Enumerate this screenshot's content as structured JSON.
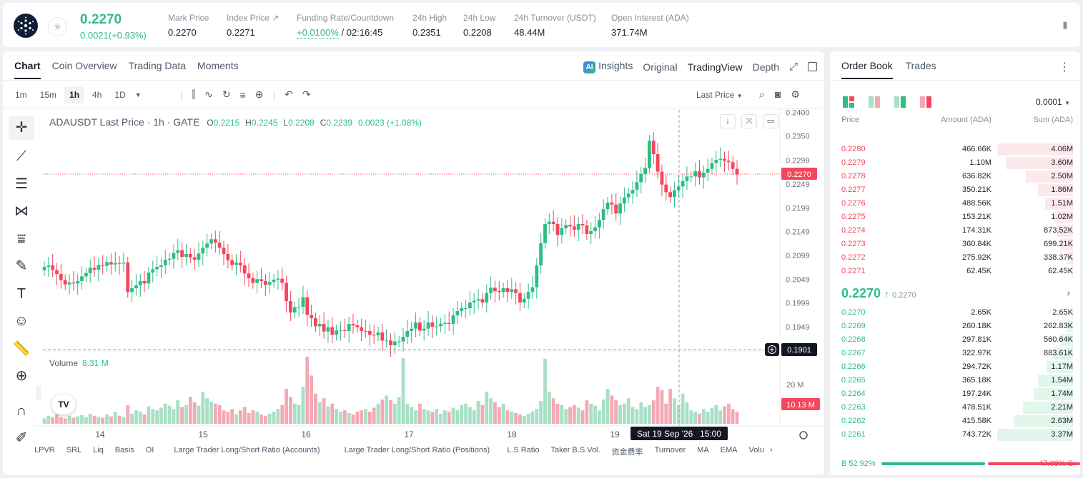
{
  "ticker": {
    "last_price": "0.2270",
    "change": "0.0021(+0.93%)",
    "stats": [
      {
        "label": "Mark Price",
        "value": "0.2270"
      },
      {
        "label": "Index Price ↗",
        "value": "0.2271"
      },
      {
        "label": "Funding Rate/Countdown",
        "value_rate": "+0.0100%",
        "value_countdown": " / 02:16:45"
      },
      {
        "label": "24h High",
        "value": "0.2351"
      },
      {
        "label": "24h Low",
        "value": "0.2208"
      },
      {
        "label": "24h Turnover (USDT)",
        "value": "48.44M"
      },
      {
        "label": "Open Interest (ADA)",
        "value": "371.74M"
      }
    ]
  },
  "chart_panel": {
    "tabs": [
      "Chart",
      "Coin Overview",
      "Trading Data",
      "Moments"
    ],
    "views": {
      "ai_badge": "AI",
      "insights": "Insights",
      "original": "Original",
      "tradingview": "TradingView",
      "depth": "Depth"
    },
    "timeframes": [
      "1m",
      "15m",
      "1h",
      "4h",
      "1D"
    ],
    "price_type": "Last Price",
    "legend": {
      "symbol": "ADAUSDT Last Price · 1h · GATE",
      "o_key": "O",
      "o": "0.2215",
      "h_key": "H",
      "h": "0.2245",
      "l_key": "L",
      "l": "0.2208",
      "c_key": "C",
      "c": "0.2239",
      "chg": "0.0023 (+1.08%)"
    },
    "volume_label": "Volume",
    "volume_value": "8.31 M",
    "tv_logo": "TV",
    "crosshair_date": "Sat 19 Sep '26",
    "crosshair_time": "15:00",
    "bottom_indicators": [
      "LPVR",
      "SRL",
      "Liq",
      "Basis",
      "OI",
      "Large Trader Long/Short Ratio (Accounts)",
      "Large Trader Long/Short Ratio (Positions)",
      "L.S Ratio",
      "Taker B.S Vol.",
      "资金费率",
      "Turnover",
      "MA",
      "EMA",
      "Volu"
    ]
  },
  "chart_data": {
    "type": "candlestick",
    "symbol": "ADAUSDT",
    "interval": "1h",
    "x_ticks": [
      "14",
      "15",
      "16",
      "17",
      "18",
      "19"
    ],
    "y_ticks": [
      "0.2400",
      "0.2350",
      "0.2299",
      "0.2249",
      "0.2199",
      "0.2149",
      "0.2099",
      "0.2049",
      "0.1999",
      "0.1949"
    ],
    "ylim": [
      0.1898,
      0.2405
    ],
    "current_price": "0.2270",
    "crosshair_price": "0.1901",
    "volume_axis_tick": "20 M",
    "current_volume": "10.13 M",
    "closes": [
      0.2075,
      0.2078,
      0.2068,
      0.206,
      0.2047,
      0.2038,
      0.2042,
      0.204,
      0.2045,
      0.2055,
      0.2062,
      0.2073,
      0.2069,
      0.2079,
      0.2077,
      0.2085,
      0.208,
      0.2083,
      0.2082,
      0.2084,
      0.2022,
      0.203,
      0.2036,
      0.2045,
      0.204,
      0.2063,
      0.207,
      0.2075,
      0.2078,
      0.209,
      0.2092,
      0.2104,
      0.211,
      0.2096,
      0.2102,
      0.2095,
      0.209,
      0.2103,
      0.2115,
      0.2124,
      0.2133,
      0.2126,
      0.2115,
      0.2102,
      0.2089,
      0.2079,
      0.2084,
      0.2078,
      0.2061,
      0.2051,
      0.2041,
      0.2049,
      0.2045,
      0.2037,
      0.2043,
      0.2048,
      0.205,
      0.2041,
      0.2003,
      0.1979,
      0.199,
      0.1991,
      0.2011,
      0.1974,
      0.1967,
      0.195,
      0.1955,
      0.1939,
      0.1948,
      0.1932,
      0.1941,
      0.1942,
      0.194,
      0.1955,
      0.1952,
      0.1948,
      0.194,
      0.194,
      0.1932,
      0.1931,
      0.1937,
      0.192,
      0.192,
      0.191,
      0.1918,
      0.1918,
      0.1928,
      0.194,
      0.1945,
      0.1958,
      0.1941,
      0.1945,
      0.1958,
      0.1949,
      0.195,
      0.1955,
      0.1957,
      0.1955,
      0.1973,
      0.1982,
      0.1988,
      0.1988,
      0.2,
      0.2004,
      0.2007,
      0.2,
      0.202,
      0.2031,
      0.2024,
      0.2022,
      0.203,
      0.2022,
      0.2028,
      0.202,
      0.2,
      0.2008,
      0.2022,
      0.2032,
      0.2078,
      0.2125,
      0.2165,
      0.217,
      0.2165,
      0.2142,
      0.2156,
      0.2163,
      0.216,
      0.2153,
      0.2165,
      0.2162,
      0.2144,
      0.215,
      0.2158,
      0.2174,
      0.2196,
      0.221,
      0.2206,
      0.2187,
      0.2208,
      0.2221,
      0.2229,
      0.2237,
      0.2253,
      0.227,
      0.2283,
      0.234,
      0.2312,
      0.2275,
      0.2248,
      0.2232,
      0.2222,
      0.2236,
      0.2244,
      0.2255,
      0.2265,
      0.2265,
      0.2276,
      0.2263,
      0.2273,
      0.2281,
      0.2293,
      0.23,
      0.2302,
      0.2298,
      0.2295,
      0.2281,
      0.2269
    ],
    "volumes_rel": [
      0.08,
      0.12,
      0.1,
      0.14,
      0.1,
      0.08,
      0.12,
      0.09,
      0.11,
      0.13,
      0.1,
      0.15,
      0.12,
      0.1,
      0.09,
      0.14,
      0.11,
      0.18,
      0.12,
      0.1,
      0.28,
      0.15,
      0.2,
      0.18,
      0.14,
      0.26,
      0.22,
      0.2,
      0.24,
      0.3,
      0.27,
      0.22,
      0.35,
      0.25,
      0.28,
      0.4,
      0.32,
      0.27,
      0.48,
      0.38,
      0.33,
      0.3,
      0.28,
      0.2,
      0.18,
      0.22,
      0.14,
      0.2,
      0.25,
      0.16,
      0.2,
      0.18,
      0.14,
      0.12,
      0.15,
      0.18,
      0.22,
      0.28,
      0.52,
      0.4,
      0.3,
      0.28,
      0.55,
      1.0,
      0.72,
      0.45,
      0.32,
      0.38,
      0.26,
      0.3,
      0.22,
      0.18,
      0.2,
      0.16,
      0.14,
      0.18,
      0.2,
      0.22,
      0.18,
      0.24,
      0.3,
      0.36,
      0.42,
      0.35,
      0.3,
      0.4,
      0.98,
      0.3,
      0.25,
      0.2,
      0.3,
      0.22,
      0.2,
      0.18,
      0.22,
      0.15,
      0.2,
      0.18,
      0.24,
      0.2,
      0.28,
      0.3,
      0.25,
      0.2,
      0.34,
      0.28,
      0.48,
      0.38,
      0.32,
      0.25,
      0.3,
      0.2,
      0.18,
      0.16,
      0.14,
      0.12,
      0.15,
      0.18,
      0.22,
      0.34,
      0.97,
      0.48,
      0.38,
      0.3,
      0.28,
      0.22,
      0.25,
      0.28,
      0.24,
      0.2,
      0.35,
      0.3,
      0.27,
      0.2,
      0.36,
      0.52,
      0.42,
      0.35,
      0.28,
      0.3,
      0.38,
      0.25,
      0.22,
      0.32,
      0.25,
      0.28,
      0.35,
      0.55,
      0.5,
      0.3,
      0.52,
      0.38,
      0.28,
      0.45,
      0.32,
      0.2,
      0.18,
      0.15,
      0.22,
      0.18,
      0.24,
      0.28,
      0.2,
      0.26,
      0.3,
      0.22,
      0.18,
      0.2,
      0.26,
      0.3
    ]
  },
  "order_book": {
    "tabs": [
      "Order Book",
      "Trades"
    ],
    "precision": "0.0001",
    "headers": {
      "price": "Price",
      "amount": "Amount (ADA)",
      "sum": "Sum (ADA)"
    },
    "asks": [
      {
        "price": "0.2280",
        "amount": "466.66K",
        "sum": "4.06M",
        "depth": 1.0
      },
      {
        "price": "0.2279",
        "amount": "1.10M",
        "sum": "3.60M",
        "depth": 0.89
      },
      {
        "price": "0.2278",
        "amount": "636.82K",
        "sum": "2.50M",
        "depth": 0.62
      },
      {
        "price": "0.2277",
        "amount": "350.21K",
        "sum": "1.86M",
        "depth": 0.46
      },
      {
        "price": "0.2276",
        "amount": "488.56K",
        "sum": "1.51M",
        "depth": 0.37
      },
      {
        "price": "0.2275",
        "amount": "153.21K",
        "sum": "1.02M",
        "depth": 0.25
      },
      {
        "price": "0.2274",
        "amount": "174.31K",
        "sum": "873.52K",
        "depth": 0.22
      },
      {
        "price": "0.2273",
        "amount": "360.84K",
        "sum": "699.21K",
        "depth": 0.17
      },
      {
        "price": "0.2272",
        "amount": "275.92K",
        "sum": "338.37K",
        "depth": 0.08
      },
      {
        "price": "0.2271",
        "amount": "62.45K",
        "sum": "62.45K",
        "depth": 0.02
      }
    ],
    "mid_price": "0.2270",
    "mid_arrow": "↑",
    "mark_price": "0.2270",
    "bids": [
      {
        "price": "0.2270",
        "amount": "2.65K",
        "sum": "2.65K",
        "depth": 0.01
      },
      {
        "price": "0.2269",
        "amount": "260.18K",
        "sum": "262.83K",
        "depth": 0.08
      },
      {
        "price": "0.2268",
        "amount": "297.81K",
        "sum": "560.64K",
        "depth": 0.17
      },
      {
        "price": "0.2267",
        "amount": "322.97K",
        "sum": "883.61K",
        "depth": 0.26
      },
      {
        "price": "0.2266",
        "amount": "294.72K",
        "sum": "1.17M",
        "depth": 0.35
      },
      {
        "price": "0.2265",
        "amount": "365.18K",
        "sum": "1.54M",
        "depth": 0.46
      },
      {
        "price": "0.2264",
        "amount": "197.24K",
        "sum": "1.74M",
        "depth": 0.52
      },
      {
        "price": "0.2263",
        "amount": "478.51K",
        "sum": "2.21M",
        "depth": 0.66
      },
      {
        "price": "0.2262",
        "amount": "415.58K",
        "sum": "2.63M",
        "depth": 0.78
      },
      {
        "price": "0.2261",
        "amount": "743.72K",
        "sum": "3.37M",
        "depth": 1.0
      }
    ],
    "buy_ratio": "B 52.92%",
    "sell_ratio": "47.08% S",
    "buy_fraction": 0.5292
  },
  "colors": {
    "up": "#2ebd85",
    "down": "#f6465d",
    "vol_up": "#a8dfc6",
    "vol_down": "#f4a9b4"
  }
}
